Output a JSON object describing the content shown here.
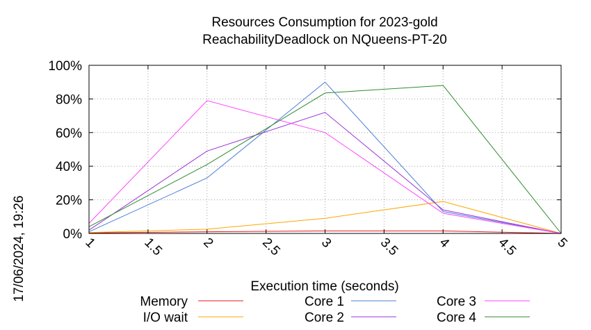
{
  "chart_data": {
    "type": "line",
    "title": [
      "Resources Consumption for 2023-gold",
      "ReachabilityDeadlock on NQueens-PT-20"
    ],
    "xlabel": "Execution time (seconds)",
    "ylabel": "",
    "timestamp": "17/06/2024, 19:26",
    "xlim": [
      1,
      5
    ],
    "ylim": [
      0,
      100
    ],
    "x_ticks": [
      1,
      1.5,
      2,
      2.5,
      3,
      3.5,
      4,
      4.5,
      5
    ],
    "y_ticks": [
      0,
      20,
      40,
      60,
      80,
      100
    ],
    "y_tick_suffix": "%",
    "grid": true,
    "legend_position": "bottom",
    "series": [
      {
        "name": "Memory",
        "color": "#e41a1c",
        "x": [
          1,
          2,
          3,
          4,
          5
        ],
        "y": [
          0.3,
          1,
          1.5,
          1.5,
          0
        ]
      },
      {
        "name": "I/O wait",
        "color": "#ffa500",
        "x": [
          1,
          2,
          3,
          4,
          5
        ],
        "y": [
          0.5,
          2.5,
          9,
          19,
          0
        ]
      },
      {
        "name": "Core 1",
        "color": "#4a7fd6",
        "x": [
          1,
          2,
          3,
          4,
          5
        ],
        "y": [
          1,
          33,
          90,
          13,
          0
        ]
      },
      {
        "name": "Core 2",
        "color": "#9a30d8",
        "x": [
          1,
          2,
          3,
          4,
          5
        ],
        "y": [
          2,
          49,
          72,
          14,
          0
        ]
      },
      {
        "name": "Core 3",
        "color": "#ff44ff",
        "x": [
          1,
          2,
          3,
          4,
          5
        ],
        "y": [
          6,
          79,
          60,
          12,
          0
        ]
      },
      {
        "name": "Core 4",
        "color": "#2e8b2e",
        "x": [
          1,
          2,
          3,
          4,
          5
        ],
        "y": [
          4,
          41,
          83.5,
          88,
          0
        ]
      }
    ]
  }
}
